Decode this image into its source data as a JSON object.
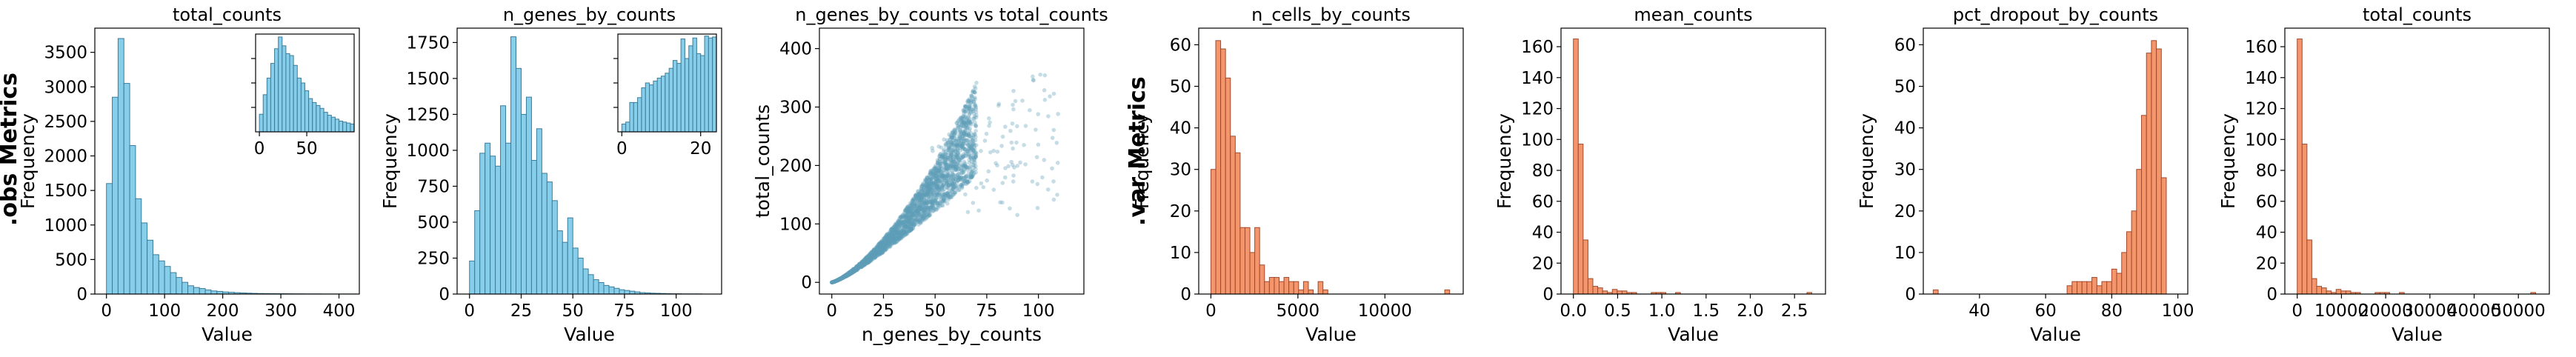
{
  "row_labels": {
    "obs": ".obs Metrics",
    "var": ".var Metrics"
  },
  "colors": {
    "obs_fill": "#87ceeb",
    "obs_edge": "#3b7c99",
    "var_fill": "#f4956c",
    "var_edge": "#a04a2c",
    "scatter": "#5f9fb8"
  },
  "chart_data": [
    {
      "id": "obs_total_counts",
      "type": "bar",
      "title": "total_counts",
      "xlabel": "Value",
      "ylabel": "Frequency",
      "theme": "obs",
      "xlim": [
        -20,
        435
      ],
      "ylim": [
        0,
        3850
      ],
      "xticks": [
        0,
        100,
        200,
        300,
        400
      ],
      "yticks": [
        0,
        500,
        1000,
        1500,
        2000,
        2500,
        3000,
        3500
      ],
      "bin_start": 0,
      "bin_width": 10,
      "values": [
        1600,
        2850,
        3700,
        3050,
        2150,
        1380,
        1030,
        780,
        570,
        480,
        400,
        310,
        240,
        170,
        120,
        95,
        80,
        60,
        45,
        38,
        30,
        25,
        20,
        16,
        13,
        10,
        8,
        7,
        6,
        5,
        5,
        4,
        3,
        3,
        2,
        2,
        2,
        1,
        1,
        1,
        1,
        1,
        1
      ],
      "inset": {
        "xlim": [
          -4,
          100
        ],
        "ylim": [
          0,
          1
        ],
        "xticks": [
          0,
          50
        ],
        "bin_start": 0,
        "bin_width": 4,
        "values": [
          0.18,
          0.38,
          0.55,
          0.7,
          0.85,
          0.97,
          0.88,
          0.8,
          0.78,
          0.68,
          0.55,
          0.5,
          0.42,
          0.34,
          0.3,
          0.27,
          0.24,
          0.2,
          0.17,
          0.15,
          0.13,
          0.11,
          0.1,
          0.09,
          0.08
        ]
      }
    },
    {
      "id": "obs_n_genes_by_counts",
      "type": "bar",
      "title": "n_genes_by_counts",
      "xlabel": "Value",
      "ylabel": "Frequency",
      "theme": "obs",
      "xlim": [
        -6,
        122
      ],
      "ylim": [
        0,
        1850
      ],
      "xticks": [
        0,
        25,
        50,
        75,
        100
      ],
      "yticks": [
        0,
        250,
        500,
        750,
        1000,
        1250,
        1500,
        1750
      ],
      "bin_start": 0,
      "bin_width": 2.5,
      "values": [
        230,
        580,
        980,
        1050,
        960,
        890,
        1310,
        1050,
        1790,
        1570,
        1250,
        1370,
        930,
        1150,
        840,
        780,
        650,
        440,
        360,
        530,
        320,
        250,
        175,
        135,
        100,
        80,
        60,
        50,
        40,
        30,
        25,
        20,
        15,
        10,
        8,
        6,
        5,
        4,
        3,
        2,
        2,
        1,
        1,
        1,
        1
      ],
      "inset": {
        "xlim": [
          -1,
          24
        ],
        "ylim": [
          0,
          1
        ],
        "xticks": [
          0,
          20
        ],
        "bin_start": 0,
        "bin_width": 1,
        "values": [
          0.08,
          0.1,
          0.3,
          0.3,
          0.35,
          0.45,
          0.5,
          0.48,
          0.52,
          0.55,
          0.57,
          0.6,
          0.65,
          0.73,
          0.7,
          0.95,
          0.75,
          0.88,
          0.96,
          0.8,
          0.78,
          0.98,
          0.96,
          0.97
        ]
      }
    },
    {
      "id": "scatter_genes_vs_counts",
      "type": "scatter",
      "title": "n_genes_by_counts vs total_counts",
      "xlabel": "n_genes_by_counts",
      "ylabel": "total_counts",
      "xlim": [
        -6,
        122
      ],
      "ylim": [
        -20,
        435
      ],
      "xticks": [
        0,
        25,
        50,
        75,
        100
      ],
      "yticks": [
        0,
        100,
        200,
        300,
        400
      ],
      "trend": {
        "x_min": 0,
        "x_max": 70,
        "coef": 0.9,
        "power": 1.28
      }
    },
    {
      "id": "var_n_cells_by_counts",
      "type": "bar",
      "title": "n_cells_by_counts",
      "xlabel": "Value",
      "ylabel": "Frequency",
      "theme": "var",
      "xlim": [
        -700,
        14500
      ],
      "ylim": [
        0,
        64
      ],
      "xticks": [
        0,
        5000,
        10000
      ],
      "yticks": [
        0,
        10,
        20,
        30,
        40,
        50,
        60
      ],
      "bin_start": 0,
      "bin_width": 280,
      "values": [
        30,
        61,
        59,
        52,
        38,
        34,
        16,
        16,
        10,
        16,
        7,
        3,
        4,
        4,
        3,
        4,
        3,
        3,
        1,
        3,
        1,
        0,
        3,
        1,
        0,
        0,
        0,
        0,
        0,
        0,
        0,
        0,
        0,
        0,
        0,
        0,
        0,
        0,
        0,
        0,
        0,
        0,
        0,
        0,
        0,
        0,
        0,
        0,
        1
      ]
    },
    {
      "id": "var_mean_counts",
      "type": "bar",
      "title": "mean_counts",
      "xlabel": "Value",
      "ylabel": "Frequency",
      "theme": "var",
      "xlim": [
        -0.14,
        2.85
      ],
      "ylim": [
        0,
        172
      ],
      "xticks": [
        0,
        0.5,
        1,
        1.5,
        2,
        2.5
      ],
      "xtick_labels": [
        "0.0",
        "0.5",
        "1.0",
        "1.5",
        "2.0",
        "2.5"
      ],
      "yticks": [
        0,
        20,
        40,
        60,
        80,
        100,
        120,
        140,
        160
      ],
      "bin_start": 0,
      "bin_width": 0.055,
      "values": [
        165,
        97,
        35,
        10,
        5,
        4,
        2,
        1,
        3,
        2,
        2,
        1,
        1,
        0,
        0,
        0,
        1,
        1,
        1,
        0,
        0,
        1,
        0,
        0,
        0,
        0,
        0,
        0,
        0,
        0,
        0,
        0,
        0,
        0,
        0,
        0,
        0,
        0,
        0,
        0,
        0,
        0,
        0,
        0,
        0,
        0,
        0,
        0,
        1
      ]
    },
    {
      "id": "var_pct_dropout_by_counts",
      "type": "bar",
      "title": "pct_dropout_by_counts",
      "xlabel": "Value",
      "ylabel": "Frequency",
      "theme": "var",
      "xlim": [
        23,
        103
      ],
      "ylim": [
        0,
        64
      ],
      "xticks": [
        40,
        60,
        80,
        100
      ],
      "yticks": [
        0,
        10,
        20,
        30,
        40,
        50,
        60
      ],
      "bin_start": 26,
      "bin_width": 1.5,
      "values": [
        1,
        0,
        0,
        0,
        0,
        0,
        0,
        0,
        0,
        0,
        0,
        0,
        0,
        0,
        0,
        0,
        0,
        0,
        0,
        0,
        0,
        0,
        0,
        0,
        0,
        0,
        0,
        2,
        3,
        3,
        3,
        3,
        4,
        2,
        3,
        3,
        6,
        5,
        10,
        15,
        20,
        30,
        43,
        58,
        61,
        59,
        28
      ]
    },
    {
      "id": "var_total_counts",
      "type": "bar",
      "title": "total_counts",
      "xlabel": "Value",
      "ylabel": "Frequency",
      "theme": "var",
      "xlim": [
        -2800,
        57000
      ],
      "ylim": [
        0,
        172
      ],
      "xticks": [
        0,
        10000,
        20000,
        30000,
        40000,
        50000
      ],
      "yticks": [
        0,
        20,
        40,
        60,
        80,
        100,
        120,
        140,
        160
      ],
      "bin_start": 0,
      "bin_width": 1100,
      "values": [
        165,
        97,
        35,
        10,
        5,
        4,
        2,
        1,
        3,
        2,
        2,
        1,
        1,
        0,
        0,
        0,
        1,
        1,
        1,
        0,
        0,
        1,
        0,
        0,
        0,
        0,
        0,
        0,
        0,
        0,
        0,
        0,
        0,
        0,
        0,
        0,
        0,
        0,
        0,
        0,
        0,
        0,
        0,
        0,
        0,
        0,
        0,
        0,
        1
      ]
    }
  ]
}
